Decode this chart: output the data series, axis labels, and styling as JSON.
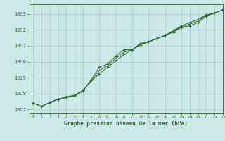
{
  "title": "Graphe pression niveau de la mer (hPa)",
  "bg_color": "#cce8e8",
  "grid_color": "#aacccc",
  "line_color": "#2d6a2d",
  "xlim": [
    -0.5,
    23
  ],
  "ylim": [
    1026.8,
    1033.6
  ],
  "yticks": [
    1027,
    1028,
    1029,
    1030,
    1031,
    1032,
    1033
  ],
  "xticks": [
    0,
    1,
    2,
    3,
    4,
    5,
    6,
    7,
    8,
    9,
    10,
    11,
    12,
    13,
    14,
    15,
    16,
    17,
    18,
    19,
    20,
    21,
    22,
    23
  ],
  "series1_x": [
    0,
    1,
    2,
    3,
    4,
    5,
    6,
    7,
    8,
    9,
    10,
    11,
    12,
    13,
    14,
    15,
    16,
    17,
    18,
    19,
    20,
    21,
    22,
    23
  ],
  "series1_y": [
    1027.4,
    1027.2,
    1027.45,
    1027.65,
    1027.75,
    1027.85,
    1028.15,
    1028.85,
    1029.65,
    1029.85,
    1030.35,
    1030.75,
    1030.75,
    1031.15,
    1031.25,
    1031.45,
    1031.65,
    1031.85,
    1032.15,
    1032.25,
    1032.45,
    1032.85,
    1033.05,
    1033.25
  ],
  "series2_x": [
    0,
    1,
    2,
    3,
    4,
    5,
    6,
    7,
    8,
    9,
    10,
    11,
    12,
    13,
    14,
    15,
    16,
    17,
    18,
    19,
    20,
    21,
    22,
    23
  ],
  "series2_y": [
    1027.4,
    1027.2,
    1027.45,
    1027.65,
    1027.8,
    1027.9,
    1028.2,
    1028.75,
    1029.25,
    1029.65,
    1030.05,
    1030.45,
    1030.75,
    1031.05,
    1031.25,
    1031.45,
    1031.65,
    1031.95,
    1032.25,
    1032.45,
    1032.65,
    1032.95,
    1033.05,
    1033.25
  ],
  "series3_x": [
    0,
    1,
    2,
    3,
    4,
    5,
    6,
    7,
    8,
    9,
    10,
    11,
    12,
    13,
    14,
    15,
    16,
    17,
    18,
    19,
    20,
    21,
    22,
    23
  ],
  "series3_y": [
    1027.4,
    1027.2,
    1027.45,
    1027.65,
    1027.77,
    1027.87,
    1028.17,
    1028.8,
    1029.45,
    1029.75,
    1030.2,
    1030.6,
    1030.75,
    1031.1,
    1031.25,
    1031.45,
    1031.65,
    1031.9,
    1032.2,
    1032.35,
    1032.55,
    1032.9,
    1033.05,
    1033.25
  ]
}
